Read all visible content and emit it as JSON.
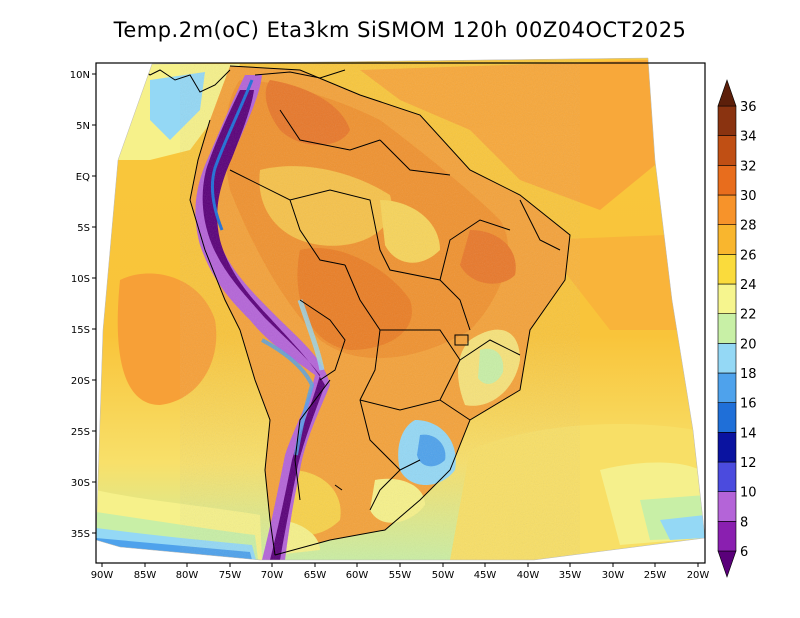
{
  "title": "Temp.2m(oC) Eta3km SiSMOM 120h 00Z04OCT2025",
  "lat_labels": [
    "10N",
    "5N",
    "EQ",
    "5S",
    "10S",
    "15S",
    "20S",
    "25S",
    "30S",
    "35S"
  ],
  "lon_labels": [
    "90W",
    "85W",
    "80W",
    "75W",
    "70W",
    "65W",
    "60W",
    "55W",
    "50W",
    "45W",
    "40W",
    "35W",
    "30W",
    "25W",
    "20W"
  ],
  "colorbar": {
    "labels": [
      "6",
      "8",
      "10",
      "12",
      "14",
      "16",
      "18",
      "20",
      "22",
      "24",
      "26",
      "28",
      "30",
      "32",
      "34",
      "36"
    ],
    "colors": [
      "#5a007a",
      "#8a1fb0",
      "#b464d8",
      "#4b4bde",
      "#0a13a0",
      "#1f6fd8",
      "#4ea2ec",
      "#94d8f5",
      "#c8f0a6",
      "#f6f58e",
      "#fadb3c",
      "#f9b62e",
      "#f7932a",
      "#e86d1d",
      "#c04f14",
      "#8a3310",
      "#5c1f0a"
    ],
    "min": 6,
    "max": 36,
    "step": 2
  }
}
